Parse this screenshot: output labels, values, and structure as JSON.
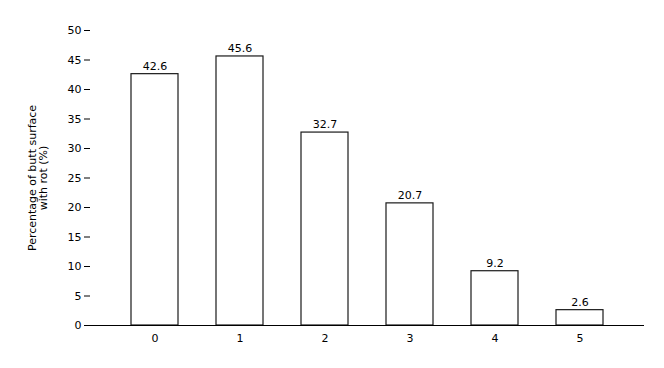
{
  "chart_data": {
    "type": "bar",
    "categories": [
      0,
      1,
      2,
      3,
      4,
      5
    ],
    "values": [
      42.6,
      45.6,
      32.7,
      20.7,
      9.2,
      2.6
    ],
    "color": "#ffffff",
    "ylabel": "Percentage of butt surface\nwith rot (%)",
    "ylim": [
      0,
      50
    ],
    "yticks": [
      0,
      5,
      10,
      15,
      20,
      25,
      30,
      35,
      40,
      45,
      50
    ],
    "grid": false,
    "data_labels": true
  }
}
